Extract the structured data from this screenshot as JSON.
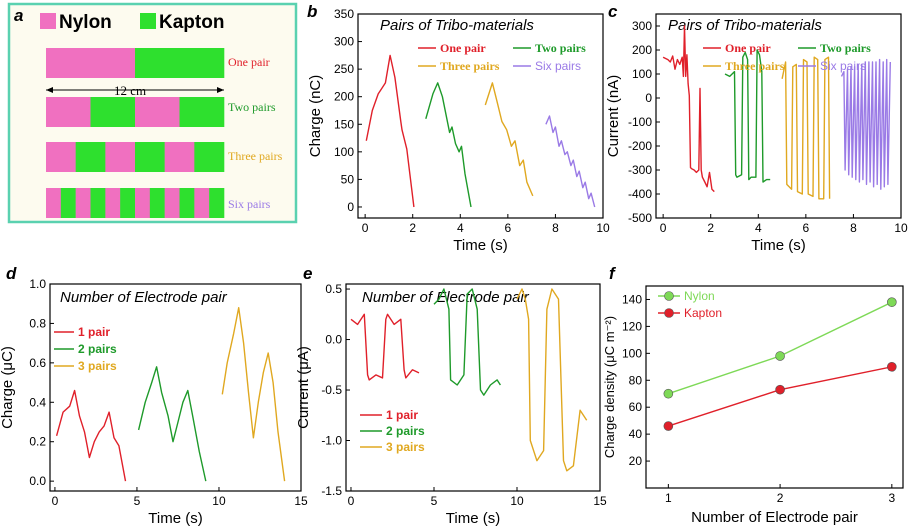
{
  "colors": {
    "red": "#e0202a",
    "green": "#1e9a2a",
    "yellow": "#e0a820",
    "purple": "#9a7ae6",
    "light_green": "#7ed957",
    "pink": "#f070c0",
    "bright_green": "#2ee02e",
    "panel_a_border": "#5ad1b0",
    "panel_a_bg": "#fdfbef"
  },
  "panel_a": {
    "label": "a",
    "legend": [
      "Nylon",
      "Kapton"
    ],
    "dimension": "12 cm",
    "rows": [
      "One pair",
      "Two pairs",
      "Three pairs",
      "Six pairs"
    ],
    "row_segments": [
      2,
      4,
      6,
      12
    ],
    "row_colors": [
      "#e0202a",
      "#1e9a2a",
      "#e0a820",
      "#9a7ae6"
    ]
  },
  "chart_data": [
    {
      "id": "b",
      "type": "line",
      "label": "b",
      "title": "Pairs of Tribo-materials",
      "xlabel": "Time (s)",
      "ylabel": "Charge (nC)",
      "xlim": [
        -0.3,
        10
      ],
      "ylim": [
        -20,
        350
      ],
      "xticks": [
        0,
        2,
        4,
        6,
        8,
        10
      ],
      "yticks": [
        0,
        50,
        100,
        150,
        200,
        250,
        300,
        350
      ],
      "series": [
        {
          "name": "One pair",
          "color": "#e0202a",
          "style": "serif",
          "x": [
            0.05,
            0.3,
            0.55,
            0.85,
            1.05,
            1.25,
            1.5,
            1.55,
            1.75,
            2.05
          ],
          "y": [
            120,
            175,
            205,
            225,
            275,
            235,
            155,
            140,
            105,
            0
          ]
        },
        {
          "name": "Two pairs",
          "color": "#1e9a2a",
          "style": "serif",
          "x": [
            2.55,
            2.85,
            3.05,
            3.25,
            3.55,
            3.65,
            3.8,
            3.95,
            4.05,
            4.2,
            4.45
          ],
          "y": [
            160,
            205,
            225,
            200,
            135,
            145,
            115,
            100,
            110,
            60,
            0
          ]
        },
        {
          "name": "Three pairs",
          "color": "#e0a820",
          "style": "serif",
          "x": [
            5.05,
            5.35,
            5.55,
            5.75,
            5.95,
            6.15,
            6.3,
            6.5,
            6.65,
            6.8,
            7.05
          ],
          "y": [
            185,
            225,
            190,
            155,
            140,
            110,
            120,
            75,
            85,
            45,
            20
          ]
        },
        {
          "name": "Six pairs",
          "color": "#9a7ae6",
          "style": "sans",
          "x": [
            7.6,
            7.75,
            7.9,
            8.0,
            8.15,
            8.25,
            8.4,
            8.5,
            8.65,
            8.75,
            8.9,
            9.0,
            9.15,
            9.25,
            9.4,
            9.5,
            9.65
          ],
          "y": [
            150,
            165,
            135,
            145,
            110,
            120,
            95,
            100,
            75,
            85,
            55,
            65,
            35,
            45,
            15,
            25,
            0
          ]
        }
      ]
    },
    {
      "id": "c",
      "type": "line",
      "label": "c",
      "title": "Pairs of Tribo-materials",
      "xlabel": "Time (s)",
      "ylabel": "Current (nA)",
      "xlim": [
        -0.3,
        10
      ],
      "ylim": [
        -500,
        350
      ],
      "xticks": [
        0,
        2,
        4,
        6,
        8,
        10
      ],
      "yticks": [
        -500,
        -400,
        -300,
        -200,
        -100,
        0,
        100,
        200,
        300
      ],
      "series": [
        {
          "name": "One pair",
          "color": "#e0202a",
          "style": "serif",
          "x": [
            0.0,
            0.2,
            0.3,
            0.4,
            0.5,
            0.6,
            0.7,
            0.8,
            0.85,
            0.9,
            0.95,
            1.0,
            1.05,
            1.1,
            1.15,
            1.2,
            1.3,
            1.4,
            1.5,
            1.55,
            1.6,
            1.65,
            1.75,
            1.85,
            1.95,
            2.05,
            2.15
          ],
          "y": [
            170,
            160,
            150,
            175,
            120,
            160,
            140,
            170,
            90,
            300,
            90,
            180,
            60,
            10,
            -290,
            -295,
            -300,
            -310,
            -300,
            40,
            -300,
            -330,
            -350,
            -370,
            -310,
            -380,
            -390
          ]
        },
        {
          "name": "Two pairs",
          "color": "#1e9a2a",
          "style": "serif",
          "x": [
            2.6,
            2.8,
            3.0,
            3.05,
            3.1,
            3.3,
            3.35,
            3.45,
            3.55,
            3.6,
            3.7,
            3.9,
            3.95,
            4.05,
            4.15,
            4.2,
            4.35,
            4.5
          ],
          "y": [
            100,
            90,
            110,
            -320,
            -330,
            -320,
            170,
            190,
            160,
            -340,
            -330,
            -330,
            200,
            180,
            110,
            -350,
            -340,
            -340
          ]
        },
        {
          "name": "Three pairs",
          "color": "#e0a820",
          "style": "serif",
          "x": [
            5.0,
            5.15,
            5.2,
            5.4,
            5.45,
            5.6,
            5.65,
            5.85,
            5.9,
            6.05,
            6.1,
            6.3,
            6.35,
            6.5,
            6.55,
            6.75,
            6.8,
            6.95,
            7.0
          ],
          "y": [
            80,
            150,
            -360,
            -380,
            130,
            140,
            -390,
            -400,
            160,
            150,
            -400,
            -410,
            170,
            160,
            -420,
            -420,
            160,
            170,
            -420
          ]
        },
        {
          "name": "Six pairs",
          "color": "#9a7ae6",
          "style": "sans",
          "x": [
            7.5,
            7.6,
            7.65,
            7.75,
            7.8,
            7.9,
            7.95,
            8.05,
            8.1,
            8.2,
            8.25,
            8.35,
            8.4,
            8.5,
            8.55,
            8.65,
            8.7,
            8.8,
            8.85,
            8.95,
            9.0,
            9.1,
            9.15,
            9.25,
            9.3,
            9.4,
            9.45,
            9.55
          ],
          "y": [
            90,
            110,
            -300,
            120,
            -320,
            130,
            -330,
            130,
            -340,
            140,
            -350,
            140,
            -340,
            150,
            -360,
            150,
            -350,
            150,
            -370,
            150,
            -360,
            160,
            -380,
            150,
            -370,
            160,
            -360,
            150
          ]
        }
      ]
    },
    {
      "id": "d",
      "type": "line",
      "label": "d",
      "title": "Number of  Electrode pair",
      "xlabel": "Time (s)",
      "ylabel": "Charge (μC)",
      "xlim": [
        -0.3,
        15
      ],
      "ylim": [
        -0.05,
        1.0
      ],
      "xticks": [
        0,
        5,
        10,
        15
      ],
      "yticks": [
        0.0,
        0.2,
        0.4,
        0.6,
        0.8,
        1.0
      ],
      "series": [
        {
          "name": "1 pair",
          "color": "#e0202a",
          "x": [
            0.1,
            0.5,
            0.9,
            1.2,
            1.5,
            1.8,
            2.1,
            2.4,
            2.7,
            3.0,
            3.3,
            3.6,
            3.9,
            4.3
          ],
          "y": [
            0.23,
            0.35,
            0.38,
            0.46,
            0.33,
            0.25,
            0.12,
            0.2,
            0.25,
            0.28,
            0.35,
            0.22,
            0.18,
            0.0
          ]
        },
        {
          "name": "2 pairs",
          "color": "#1e9a2a",
          "x": [
            5.1,
            5.5,
            5.9,
            6.2,
            6.5,
            6.9,
            7.2,
            7.5,
            7.8,
            8.1,
            8.4,
            8.8,
            9.2
          ],
          "y": [
            0.26,
            0.4,
            0.5,
            0.58,
            0.45,
            0.33,
            0.2,
            0.3,
            0.4,
            0.46,
            0.33,
            0.15,
            0.0
          ]
        },
        {
          "name": "3 pairs",
          "color": "#e0a820",
          "x": [
            10.2,
            10.5,
            10.9,
            11.2,
            11.5,
            11.8,
            12.1,
            12.4,
            12.7,
            13.0,
            13.3,
            13.6,
            14.0
          ],
          "y": [
            0.44,
            0.6,
            0.75,
            0.88,
            0.7,
            0.45,
            0.22,
            0.4,
            0.55,
            0.65,
            0.5,
            0.25,
            0.0
          ]
        }
      ]
    },
    {
      "id": "e",
      "type": "line",
      "label": "e",
      "title": "Number of  Electrode pair",
      "xlabel": "Time (s)",
      "ylabel": "Current (μA)",
      "xlim": [
        -0.3,
        15
      ],
      "ylim": [
        -1.5,
        0.55
      ],
      "xticks": [
        0,
        5,
        10,
        15
      ],
      "yticks": [
        -1.5,
        -1.0,
        -0.5,
        0.0,
        0.5
      ],
      "series": [
        {
          "name": "1 pair",
          "color": "#e0202a",
          "x": [
            0.0,
            0.4,
            0.8,
            1.0,
            1.1,
            1.5,
            1.9,
            2.1,
            2.2,
            2.6,
            3.0,
            3.2,
            3.3,
            3.7,
            4.1
          ],
          "y": [
            0.2,
            0.15,
            0.25,
            -0.35,
            -0.4,
            -0.35,
            -0.38,
            0.2,
            0.25,
            0.15,
            0.2,
            -0.3,
            -0.38,
            -0.3,
            -0.33
          ]
        },
        {
          "name": "2 pairs",
          "color": "#1e9a2a",
          "x": [
            5.0,
            5.3,
            5.6,
            5.9,
            6.0,
            6.4,
            6.8,
            7.0,
            7.3,
            7.6,
            7.8,
            8.0,
            8.4,
            8.8,
            9.0
          ],
          "y": [
            0.35,
            0.4,
            0.5,
            0.3,
            -0.4,
            -0.45,
            -0.35,
            0.45,
            0.5,
            0.3,
            -0.5,
            -0.55,
            -0.45,
            -0.4,
            -0.45
          ]
        },
        {
          "name": "3 pairs",
          "color": "#e0a820",
          "x": [
            10.0,
            10.3,
            10.5,
            10.7,
            10.8,
            11.2,
            11.6,
            11.8,
            12.1,
            12.5,
            12.8,
            13.0,
            13.4,
            13.8,
            14.2
          ],
          "y": [
            0.4,
            0.5,
            0.4,
            0.2,
            -1.0,
            -1.2,
            -1.1,
            0.3,
            0.5,
            0.4,
            -1.2,
            -1.3,
            -1.25,
            -0.7,
            -0.8
          ]
        }
      ]
    },
    {
      "id": "f",
      "type": "line",
      "label": "f",
      "title": "",
      "xlabel": "Number of  Electrode pair",
      "ylabel": "Charge density (μC m⁻²)",
      "xlim": [
        0.8,
        3.1
      ],
      "ylim": [
        0,
        150
      ],
      "xticks": [
        1,
        2,
        3
      ],
      "yticks": [
        20,
        40,
        60,
        80,
        100,
        120,
        140
      ],
      "series": [
        {
          "name": "Nylon",
          "color": "#7ed957",
          "x": [
            1,
            2,
            3
          ],
          "y": [
            70,
            98,
            138
          ]
        },
        {
          "name": "Kapton",
          "color": "#e0202a",
          "x": [
            1,
            2,
            3
          ],
          "y": [
            46,
            73,
            90
          ]
        }
      ]
    }
  ]
}
